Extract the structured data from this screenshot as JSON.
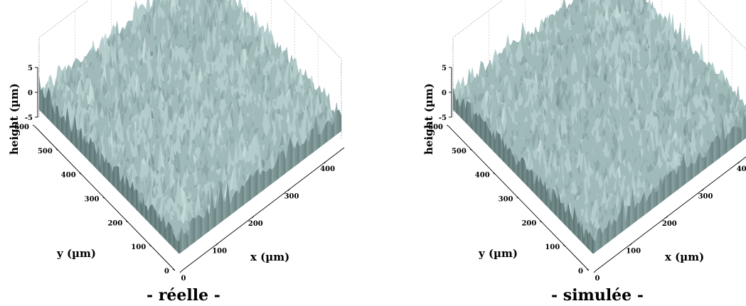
{
  "chart_data": [
    {
      "type": "surface",
      "caption": "- réelle -",
      "xlabel": "x (µm)",
      "ylabel": "y (µm)",
      "zlabel": "height (µm)",
      "xlim": [
        0,
        450
      ],
      "ylim": [
        0,
        600
      ],
      "zlim": [
        -5,
        5
      ],
      "xticks": [
        "0",
        "100",
        "200",
        "300",
        "400"
      ],
      "yticks": [
        "0",
        "100",
        "200",
        "300",
        "400",
        "500",
        "600"
      ],
      "zticks": [
        "5",
        "0",
        "-5"
      ],
      "surface_color": "#9fb8b8",
      "grid": true
    },
    {
      "type": "surface",
      "caption": "- simulée -",
      "xlabel": "x (µm)",
      "ylabel": "y (µm)",
      "zlabel": "height (µm)",
      "xlim": [
        0,
        450
      ],
      "ylim": [
        0,
        600
      ],
      "zlim": [
        -5,
        5
      ],
      "xticks": [
        "0",
        "100",
        "200",
        "300",
        "40"
      ],
      "yticks": [
        "0",
        "100",
        "200",
        "300",
        "400",
        "500",
        "600"
      ],
      "zticks": [
        "5",
        "0",
        "-5"
      ],
      "surface_color": "#a3bcbc",
      "grid": true
    }
  ]
}
